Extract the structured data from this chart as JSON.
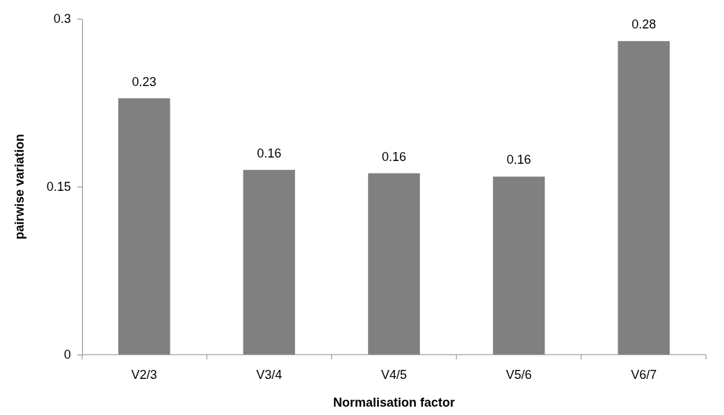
{
  "chart_data": {
    "type": "bar",
    "xlabel": "Normalisation factor",
    "ylabel": "pairwise variation",
    "categories": [
      "V2/3",
      "V3/4",
      "V4/5",
      "V5/6",
      "V6/7"
    ],
    "values": [
      0.229,
      0.165,
      0.162,
      0.159,
      0.28
    ],
    "value_labels": [
      "0.23",
      "0.16",
      "0.16",
      "0.16",
      "0.28"
    ],
    "color": "#808080",
    "ylim": [
      0,
      0.3
    ],
    "yticks": [
      0,
      0.15,
      0.3
    ],
    "grid": false
  }
}
